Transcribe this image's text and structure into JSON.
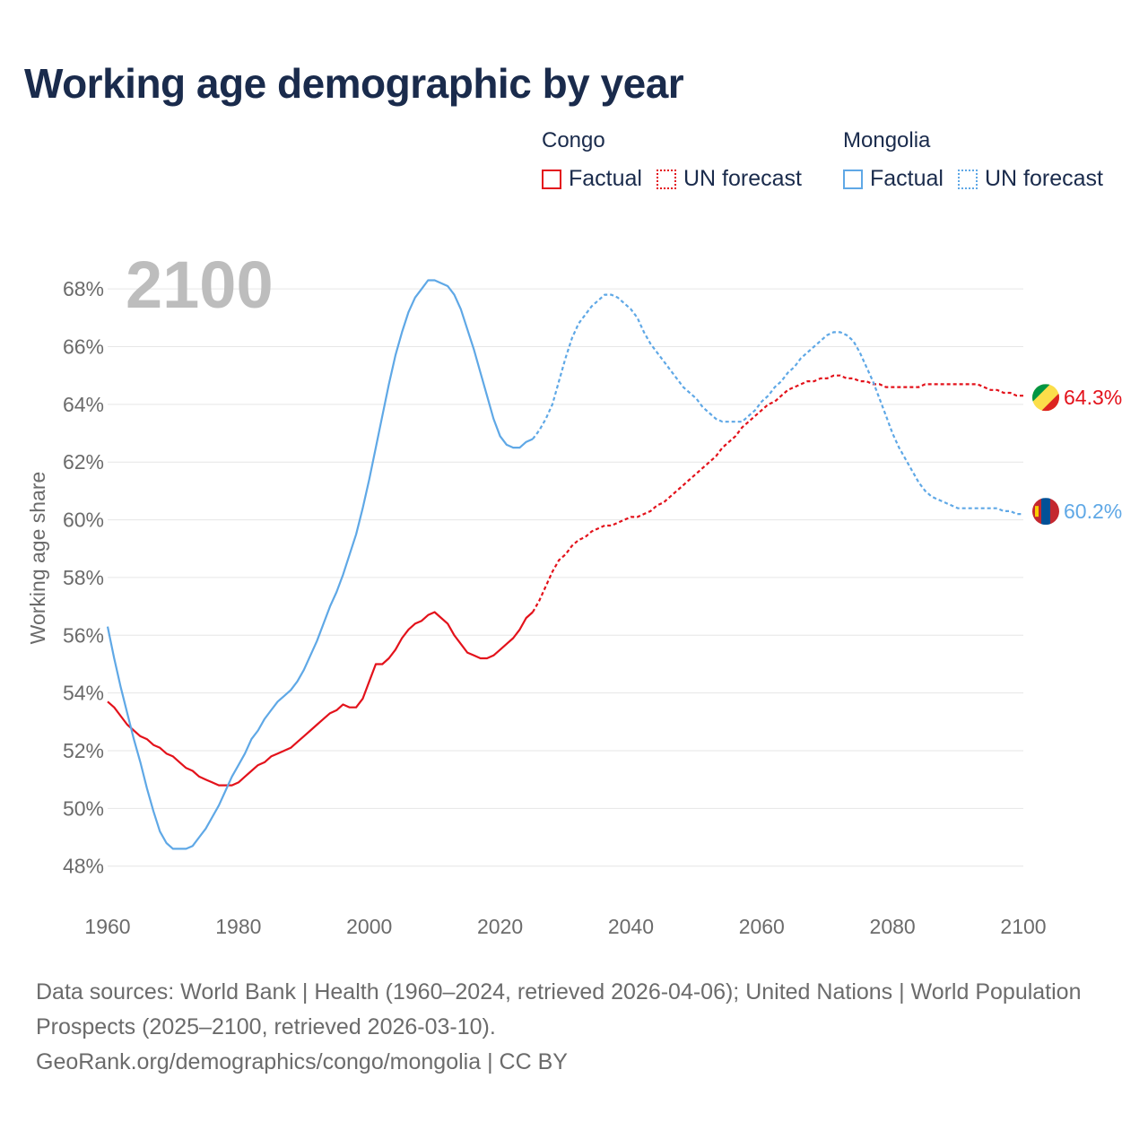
{
  "title": "Working age demographic by year",
  "legend": {
    "groups": [
      {
        "name": "Congo",
        "factual_label": "Factual",
        "forecast_label": "UN forecast",
        "color": "#e3121b"
      },
      {
        "name": "Mongolia",
        "factual_label": "Factual",
        "forecast_label": "UN forecast",
        "color": "#5fa8e6"
      }
    ]
  },
  "footer": {
    "sources": "Data sources: World Bank | Health (1960–2024, retrieved 2026-04-06); United Nations | World Population Prospects (2025–2100, retrieved 2026-03-10).",
    "credit": "GeoRank.org/demographics/congo/mongolia | CC BY"
  },
  "flags": {
    "congo": {
      "colors": [
        "#009543",
        "#fbde4a",
        "#dc241f"
      ],
      "icon": "congo-flag-icon"
    },
    "mongolia": {
      "colors": [
        "#c4272f",
        "#015197",
        "#f9cf02"
      ],
      "icon": "mongolia-flag-icon"
    }
  },
  "chart_data": {
    "type": "line",
    "year_watermark": "2100",
    "ylabel": "Working age share",
    "xlabel": "",
    "xlim": [
      1960,
      2100
    ],
    "ylim": [
      47.4,
      69
    ],
    "x_ticks": [
      1960,
      1980,
      2000,
      2020,
      2040,
      2060,
      2080,
      2100
    ],
    "x_tick_labels": [
      "1960",
      "1980",
      "2000",
      "2020",
      "2040",
      "2060",
      "2080",
      "2100"
    ],
    "y_ticks": [
      48,
      50,
      52,
      54,
      56,
      58,
      60,
      62,
      64,
      66,
      68
    ],
    "y_tick_labels": [
      "48%",
      "50%",
      "52%",
      "54%",
      "56%",
      "58%",
      "60%",
      "62%",
      "64%",
      "66%",
      "68%"
    ],
    "grid": true,
    "forecast_start": 2025,
    "series": [
      {
        "name": "Congo",
        "color": "#e3121b",
        "end_label": "64.3%",
        "points": [
          [
            1960,
            53.7
          ],
          [
            1961,
            53.5
          ],
          [
            1962,
            53.2
          ],
          [
            1963,
            52.9
          ],
          [
            1964,
            52.7
          ],
          [
            1965,
            52.5
          ],
          [
            1966,
            52.4
          ],
          [
            1967,
            52.2
          ],
          [
            1968,
            52.1
          ],
          [
            1969,
            51.9
          ],
          [
            1970,
            51.8
          ],
          [
            1971,
            51.6
          ],
          [
            1972,
            51.4
          ],
          [
            1973,
            51.3
          ],
          [
            1974,
            51.1
          ],
          [
            1975,
            51.0
          ],
          [
            1976,
            50.9
          ],
          [
            1977,
            50.8
          ],
          [
            1978,
            50.8
          ],
          [
            1979,
            50.8
          ],
          [
            1980,
            50.9
          ],
          [
            1981,
            51.1
          ],
          [
            1982,
            51.3
          ],
          [
            1983,
            51.5
          ],
          [
            1984,
            51.6
          ],
          [
            1985,
            51.8
          ],
          [
            1986,
            51.9
          ],
          [
            1987,
            52.0
          ],
          [
            1988,
            52.1
          ],
          [
            1989,
            52.3
          ],
          [
            1990,
            52.5
          ],
          [
            1991,
            52.7
          ],
          [
            1992,
            52.9
          ],
          [
            1993,
            53.1
          ],
          [
            1994,
            53.3
          ],
          [
            1995,
            53.4
          ],
          [
            1996,
            53.6
          ],
          [
            1997,
            53.5
          ],
          [
            1998,
            53.5
          ],
          [
            1999,
            53.8
          ],
          [
            2000,
            54.4
          ],
          [
            2001,
            55.0
          ],
          [
            2002,
            55.0
          ],
          [
            2003,
            55.2
          ],
          [
            2004,
            55.5
          ],
          [
            2005,
            55.9
          ],
          [
            2006,
            56.2
          ],
          [
            2007,
            56.4
          ],
          [
            2008,
            56.5
          ],
          [
            2009,
            56.7
          ],
          [
            2010,
            56.8
          ],
          [
            2011,
            56.6
          ],
          [
            2012,
            56.4
          ],
          [
            2013,
            56.0
          ],
          [
            2014,
            55.7
          ],
          [
            2015,
            55.4
          ],
          [
            2016,
            55.3
          ],
          [
            2017,
            55.2
          ],
          [
            2018,
            55.2
          ],
          [
            2019,
            55.3
          ],
          [
            2020,
            55.5
          ],
          [
            2021,
            55.7
          ],
          [
            2022,
            55.9
          ],
          [
            2023,
            56.2
          ],
          [
            2024,
            56.6
          ],
          [
            2025,
            56.8
          ],
          [
            2026,
            57.2
          ],
          [
            2027,
            57.7
          ],
          [
            2028,
            58.2
          ],
          [
            2029,
            58.6
          ],
          [
            2030,
            58.8
          ],
          [
            2031,
            59.1
          ],
          [
            2032,
            59.3
          ],
          [
            2033,
            59.4
          ],
          [
            2034,
            59.6
          ],
          [
            2035,
            59.7
          ],
          [
            2036,
            59.8
          ],
          [
            2037,
            59.8
          ],
          [
            2038,
            59.9
          ],
          [
            2039,
            60.0
          ],
          [
            2040,
            60.1
          ],
          [
            2041,
            60.1
          ],
          [
            2042,
            60.2
          ],
          [
            2043,
            60.3
          ],
          [
            2044,
            60.5
          ],
          [
            2045,
            60.6
          ],
          [
            2046,
            60.8
          ],
          [
            2047,
            61.0
          ],
          [
            2048,
            61.2
          ],
          [
            2049,
            61.4
          ],
          [
            2050,
            61.6
          ],
          [
            2051,
            61.8
          ],
          [
            2052,
            62.0
          ],
          [
            2053,
            62.2
          ],
          [
            2054,
            62.5
          ],
          [
            2055,
            62.7
          ],
          [
            2056,
            62.9
          ],
          [
            2057,
            63.2
          ],
          [
            2058,
            63.4
          ],
          [
            2059,
            63.6
          ],
          [
            2060,
            63.8
          ],
          [
            2061,
            64.0
          ],
          [
            2062,
            64.1
          ],
          [
            2063,
            64.3
          ],
          [
            2064,
            64.5
          ],
          [
            2065,
            64.6
          ],
          [
            2066,
            64.7
          ],
          [
            2067,
            64.8
          ],
          [
            2068,
            64.8
          ],
          [
            2069,
            64.9
          ],
          [
            2070,
            64.9
          ],
          [
            2071,
            65.0
          ],
          [
            2072,
            65.0
          ],
          [
            2073,
            64.9
          ],
          [
            2074,
            64.9
          ],
          [
            2075,
            64.8
          ],
          [
            2076,
            64.8
          ],
          [
            2077,
            64.7
          ],
          [
            2078,
            64.7
          ],
          [
            2079,
            64.6
          ],
          [
            2080,
            64.6
          ],
          [
            2081,
            64.6
          ],
          [
            2082,
            64.6
          ],
          [
            2083,
            64.6
          ],
          [
            2084,
            64.6
          ],
          [
            2085,
            64.7
          ],
          [
            2086,
            64.7
          ],
          [
            2087,
            64.7
          ],
          [
            2088,
            64.7
          ],
          [
            2089,
            64.7
          ],
          [
            2090,
            64.7
          ],
          [
            2091,
            64.7
          ],
          [
            2092,
            64.7
          ],
          [
            2093,
            64.7
          ],
          [
            2094,
            64.6
          ],
          [
            2095,
            64.5
          ],
          [
            2096,
            64.5
          ],
          [
            2097,
            64.4
          ],
          [
            2098,
            64.4
          ],
          [
            2099,
            64.3
          ],
          [
            2100,
            64.3
          ]
        ]
      },
      {
        "name": "Mongolia",
        "color": "#5fa8e6",
        "end_label": "60.2%",
        "points": [
          [
            1960,
            56.3
          ],
          [
            1961,
            55.2
          ],
          [
            1962,
            54.2
          ],
          [
            1963,
            53.3
          ],
          [
            1964,
            52.4
          ],
          [
            1965,
            51.6
          ],
          [
            1966,
            50.7
          ],
          [
            1967,
            49.9
          ],
          [
            1968,
            49.2
          ],
          [
            1969,
            48.8
          ],
          [
            1970,
            48.6
          ],
          [
            1971,
            48.6
          ],
          [
            1972,
            48.6
          ],
          [
            1973,
            48.7
          ],
          [
            1974,
            49.0
          ],
          [
            1975,
            49.3
          ],
          [
            1976,
            49.7
          ],
          [
            1977,
            50.1
          ],
          [
            1978,
            50.6
          ],
          [
            1979,
            51.1
          ],
          [
            1980,
            51.5
          ],
          [
            1981,
            51.9
          ],
          [
            1982,
            52.4
          ],
          [
            1983,
            52.7
          ],
          [
            1984,
            53.1
          ],
          [
            1985,
            53.4
          ],
          [
            1986,
            53.7
          ],
          [
            1987,
            53.9
          ],
          [
            1988,
            54.1
          ],
          [
            1989,
            54.4
          ],
          [
            1990,
            54.8
          ],
          [
            1991,
            55.3
          ],
          [
            1992,
            55.8
          ],
          [
            1993,
            56.4
          ],
          [
            1994,
            57.0
          ],
          [
            1995,
            57.5
          ],
          [
            1996,
            58.1
          ],
          [
            1997,
            58.8
          ],
          [
            1998,
            59.5
          ],
          [
            1999,
            60.4
          ],
          [
            2000,
            61.4
          ],
          [
            2001,
            62.5
          ],
          [
            2002,
            63.6
          ],
          [
            2003,
            64.7
          ],
          [
            2004,
            65.7
          ],
          [
            2005,
            66.5
          ],
          [
            2006,
            67.2
          ],
          [
            2007,
            67.7
          ],
          [
            2008,
            68.0
          ],
          [
            2009,
            68.3
          ],
          [
            2010,
            68.3
          ],
          [
            2011,
            68.2
          ],
          [
            2012,
            68.1
          ],
          [
            2013,
            67.8
          ],
          [
            2014,
            67.3
          ],
          [
            2015,
            66.6
          ],
          [
            2016,
            65.9
          ],
          [
            2017,
            65.1
          ],
          [
            2018,
            64.3
          ],
          [
            2019,
            63.5
          ],
          [
            2020,
            62.9
          ],
          [
            2021,
            62.6
          ],
          [
            2022,
            62.5
          ],
          [
            2023,
            62.5
          ],
          [
            2024,
            62.7
          ],
          [
            2025,
            62.8
          ],
          [
            2026,
            63.1
          ],
          [
            2027,
            63.5
          ],
          [
            2028,
            64.0
          ],
          [
            2029,
            64.8
          ],
          [
            2030,
            65.6
          ],
          [
            2031,
            66.3
          ],
          [
            2032,
            66.8
          ],
          [
            2033,
            67.1
          ],
          [
            2034,
            67.4
          ],
          [
            2035,
            67.6
          ],
          [
            2036,
            67.8
          ],
          [
            2037,
            67.8
          ],
          [
            2038,
            67.7
          ],
          [
            2039,
            67.5
          ],
          [
            2040,
            67.3
          ],
          [
            2041,
            67.0
          ],
          [
            2042,
            66.5
          ],
          [
            2043,
            66.1
          ],
          [
            2044,
            65.8
          ],
          [
            2045,
            65.5
          ],
          [
            2046,
            65.2
          ],
          [
            2047,
            64.9
          ],
          [
            2048,
            64.6
          ],
          [
            2049,
            64.4
          ],
          [
            2050,
            64.2
          ],
          [
            2051,
            63.9
          ],
          [
            2052,
            63.7
          ],
          [
            2053,
            63.5
          ],
          [
            2054,
            63.4
          ],
          [
            2055,
            63.4
          ],
          [
            2056,
            63.4
          ],
          [
            2057,
            63.4
          ],
          [
            2058,
            63.6
          ],
          [
            2059,
            63.8
          ],
          [
            2060,
            64.1
          ],
          [
            2061,
            64.3
          ],
          [
            2062,
            64.6
          ],
          [
            2063,
            64.8
          ],
          [
            2064,
            65.1
          ],
          [
            2065,
            65.3
          ],
          [
            2066,
            65.6
          ],
          [
            2067,
            65.8
          ],
          [
            2068,
            66.0
          ],
          [
            2069,
            66.2
          ],
          [
            2070,
            66.4
          ],
          [
            2071,
            66.5
          ],
          [
            2072,
            66.5
          ],
          [
            2073,
            66.4
          ],
          [
            2074,
            66.2
          ],
          [
            2075,
            65.8
          ],
          [
            2076,
            65.3
          ],
          [
            2077,
            64.8
          ],
          [
            2078,
            64.2
          ],
          [
            2079,
            63.6
          ],
          [
            2080,
            63.0
          ],
          [
            2081,
            62.5
          ],
          [
            2082,
            62.1
          ],
          [
            2083,
            61.7
          ],
          [
            2084,
            61.3
          ],
          [
            2085,
            61.0
          ],
          [
            2086,
            60.8
          ],
          [
            2087,
            60.7
          ],
          [
            2088,
            60.6
          ],
          [
            2089,
            60.5
          ],
          [
            2090,
            60.4
          ],
          [
            2091,
            60.4
          ],
          [
            2092,
            60.4
          ],
          [
            2093,
            60.4
          ],
          [
            2094,
            60.4
          ],
          [
            2095,
            60.4
          ],
          [
            2096,
            60.4
          ],
          [
            2097,
            60.3
          ],
          [
            2098,
            60.3
          ],
          [
            2099,
            60.2
          ],
          [
            2100,
            60.2
          ]
        ]
      }
    ]
  }
}
